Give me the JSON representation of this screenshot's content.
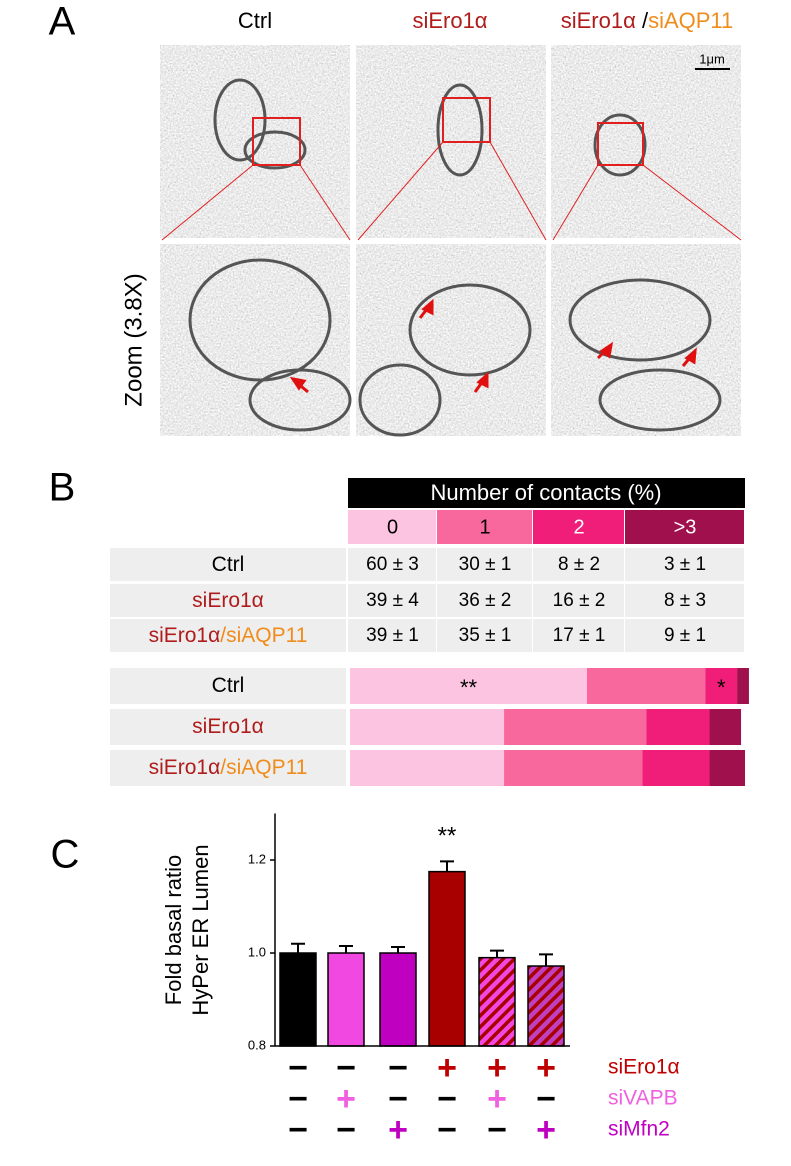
{
  "panel_labels": [
    "A",
    "B",
    "C"
  ],
  "panel_a": {
    "columns": [
      [
        {
          "text": "Ctrl",
          "color": "#000000"
        }
      ],
      [
        {
          "text": "siEro1α",
          "color": "#b01c1c"
        }
      ],
      [
        {
          "text": "siEro1α ",
          "color": "#b01c1c"
        },
        {
          "text": "/",
          "color": "#000000"
        },
        {
          "text": "siAQP11",
          "color": "#f08c1c"
        }
      ]
    ],
    "scale_bar": "1μm",
    "zoom_label": "Zoom (3.8X)"
  },
  "table": {
    "header": "Number of contacts (%)",
    "rows": [
      {
        "label": [
          {
            "text": "Ctrl",
            "color": "#000000"
          }
        ],
        "cells": [
          "60 ± 3",
          "30 ± 1",
          "8 ± 2",
          "3 ± 1"
        ]
      },
      {
        "label": [
          {
            "text": "siEro1α",
            "color": "#b01c1c"
          }
        ],
        "cells": [
          "39 ± 4",
          "36 ± 2",
          "16 ± 2",
          "8 ± 3"
        ]
      },
      {
        "label": [
          {
            "text": "siEro1α",
            "color": "#b01c1c"
          },
          {
            "text": "/siAQP11",
            "color": "#f08c1c"
          }
        ],
        "cells": [
          "39 ± 1",
          "35 ± 1",
          "17 ± 1",
          "9 ± 1"
        ]
      }
    ]
  },
  "chart_data": [
    {
      "type": "stacked-bar",
      "categories": [
        [
          {
            "text": "Ctrl",
            "color": "#000000"
          }
        ],
        [
          {
            "text": "siEro1α",
            "color": "#b01c1c"
          }
        ],
        [
          {
            "text": "siEro1α",
            "color": "#b01c1c"
          },
          {
            "text": "/siAQP11",
            "color": "#f08c1c"
          }
        ]
      ],
      "xlim": [
        0,
        100
      ],
      "series": [
        {
          "name": "0",
          "color": "#fcc4e0",
          "values": [
            60,
            39,
            39
          ]
        },
        {
          "name": "1",
          "color": "#f8689c",
          "values": [
            30,
            36,
            35
          ]
        },
        {
          "name": "2",
          "color": "#f01e78",
          "values": [
            8,
            16,
            17
          ]
        },
        {
          "name": ">3",
          "color": "#a0104c",
          "values": [
            3,
            8,
            9
          ]
        }
      ],
      "annotations": [
        {
          "text": "**",
          "series": 0,
          "category": 0
        },
        {
          "text": "*",
          "series": 2,
          "category": 0
        }
      ]
    },
    {
      "type": "bar",
      "ylabel": [
        "Fold basal ratio",
        "HyPer ER Lumen"
      ],
      "ylim": [
        0.8,
        1.3
      ],
      "yticks": [
        0.8,
        {
          "value": 1,
          "label": "1.0"
        },
        1.2
      ],
      "values": [
        1.0,
        1.0,
        1.0,
        1.175,
        0.99,
        0.972
      ],
      "errors": [
        0.02,
        0.015,
        0.013,
        0.022,
        0.015,
        0.025
      ],
      "colors": [
        "#000000",
        "#f048e0",
        "#c000c0",
        "#a80000",
        "#f048e0",
        "#c040c0"
      ],
      "hatched": [
        false,
        false,
        false,
        false,
        true,
        true
      ],
      "hatch_color": "#a80000",
      "annotations": [
        {
          "text": "**",
          "index": 3
        }
      ],
      "conditions": [
        {
          "name": "siEro1α",
          "color": "#c00000",
          "signs": [
            "−",
            "−",
            "−",
            "+",
            "+",
            "+"
          ]
        },
        {
          "name": "siVAPB",
          "color": "#f060e0",
          "signs": [
            "−",
            "+",
            "−",
            "−",
            "+",
            "−"
          ]
        },
        {
          "name": "siMfn2",
          "color": "#c000c0",
          "signs": [
            "−",
            "−",
            "+",
            "−",
            "−",
            "+"
          ]
        }
      ]
    }
  ]
}
